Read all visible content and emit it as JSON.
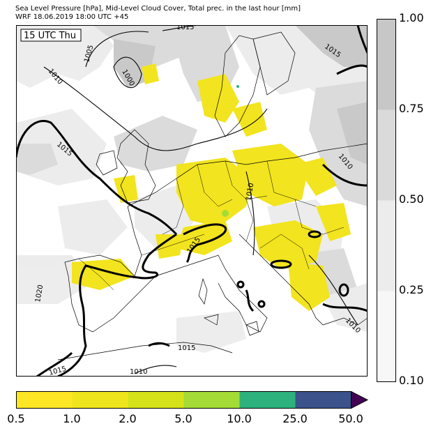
{
  "header": {
    "line1": "Sea Level Pressure [hPa], Mid-Level Cloud Cover, Total prec. in the last hour [mm]",
    "line2": "WRF 18.06.2019 18:00 UTC +45"
  },
  "map": {
    "time_badge": "15 UTC Thu",
    "contour_labels": [
      "1015",
      "1005",
      "1000",
      "1010",
      "1015",
      "1010",
      "1015",
      "1020",
      "1015",
      "1010",
      "1010",
      "1015",
      "1010",
      "1015"
    ],
    "colors": {
      "land_line": "#000000",
      "sea": "#ffffff",
      "cloud_light": "#e6e6e6",
      "cloud_mid": "#d0d0d0",
      "cloud_dark": "#b8b8b8",
      "precip": "#f2e41e"
    }
  },
  "cloud_colorbar": {
    "labels": [
      "1.00",
      "0.75",
      "0.50",
      "0.25",
      "0.10"
    ],
    "colors": [
      "#c7c7c7",
      "#dadada",
      "#ececec",
      "#f7f7f7"
    ]
  },
  "precip_colorbar": {
    "labels": [
      "0.5",
      "1.0",
      "2.0",
      "5.0",
      "10.0",
      "25.0",
      "50.0"
    ],
    "colors": [
      "#fde725",
      "#efe51c",
      "#d5e21a",
      "#a5db36",
      "#2db27d",
      "#3b528b",
      "#440154"
    ]
  }
}
